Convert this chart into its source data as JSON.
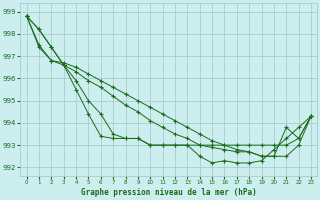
{
  "title": "Graphe pression niveau de la mer (hPa)",
  "background_color": "#cceeee",
  "grid_color": "#aacccc",
  "line_color": "#1a6b1a",
  "marker": "+",
  "xlim": [
    -0.5,
    23.5
  ],
  "ylim": [
    991.6,
    999.4
  ],
  "yticks": [
    992,
    993,
    994,
    995,
    996,
    997,
    998,
    999
  ],
  "xticks": [
    0,
    1,
    2,
    3,
    4,
    5,
    6,
    7,
    8,
    9,
    10,
    11,
    12,
    13,
    14,
    15,
    16,
    17,
    18,
    19,
    20,
    21,
    22,
    23
  ],
  "series": [
    [
      998.8,
      998.2,
      997.4,
      996.6,
      995.9,
      995.0,
      994.4,
      993.5,
      993.3,
      993.3,
      993.0,
      993.0,
      993.0,
      993.0,
      992.5,
      992.2,
      992.3,
      992.2,
      992.2,
      992.3,
      992.8,
      993.3,
      993.8,
      994.3
    ],
    [
      998.8,
      998.2,
      997.4,
      996.6,
      995.5,
      994.4,
      993.4,
      993.3,
      993.3,
      993.3,
      993.0,
      993.0,
      993.0,
      993.0,
      993.0,
      993.0,
      993.0,
      993.0,
      993.0,
      993.0,
      993.0,
      993.0,
      993.3,
      994.3
    ],
    [
      998.8,
      997.4,
      996.8,
      996.6,
      996.3,
      995.9,
      995.6,
      995.2,
      994.8,
      994.5,
      994.1,
      993.8,
      993.5,
      993.3,
      993.0,
      992.9,
      992.8,
      992.7,
      992.7,
      992.5,
      992.5,
      993.8,
      993.3,
      994.3
    ],
    [
      998.8,
      997.5,
      996.8,
      996.7,
      996.5,
      996.2,
      995.9,
      995.6,
      995.3,
      995.0,
      994.7,
      994.4,
      994.1,
      993.8,
      993.5,
      993.2,
      993.0,
      992.8,
      992.7,
      992.5,
      992.5,
      992.5,
      993.0,
      994.3
    ]
  ]
}
